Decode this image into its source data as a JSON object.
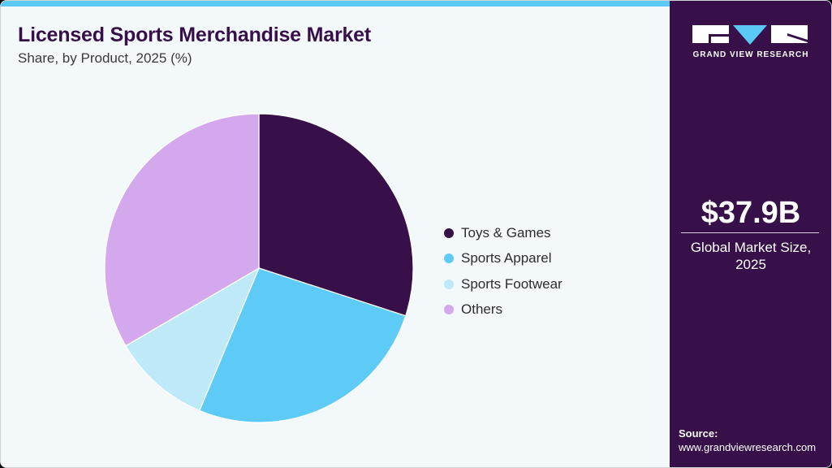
{
  "header": {
    "title": "Licensed Sports Merchandise Market",
    "subtitle": "Share, by Product, 2025 (%)"
  },
  "brand": {
    "name": "GRAND VIEW RESEARCH",
    "logo_icon": "gvr-logo-icon",
    "colors": {
      "panel": "#37104a",
      "accent": "#5bc9f5"
    }
  },
  "stat": {
    "value": "$37.9B",
    "label_line1": "Global Market Size,",
    "label_line2": "2025"
  },
  "source": {
    "label": "Source:",
    "url": "www.grandviewresearch.com"
  },
  "legend": [
    {
      "label": "Toys & Games",
      "color": "#37104a"
    },
    {
      "label": "Sports Apparel",
      "color": "#5ecaf6"
    },
    {
      "label": "Sports Footwear",
      "color": "#bde9f9"
    },
    {
      "label": "Others",
      "color": "#d3a8ec"
    }
  ],
  "chart_data": {
    "type": "pie",
    "title": "Licensed Sports Merchandise Market",
    "subtitle": "Share, by Product, 2025 (%)",
    "categories": [
      "Toys & Games",
      "Sports Apparel",
      "Sports Footwear",
      "Others"
    ],
    "values": [
      30.0,
      26.3,
      10.3,
      33.4
    ],
    "colors": [
      "#37104a",
      "#5ecaf6",
      "#bde9f9",
      "#d3a8ec"
    ],
    "start_angle": "12 o'clock, clockwise",
    "legend_position": "right",
    "unit": "%"
  }
}
